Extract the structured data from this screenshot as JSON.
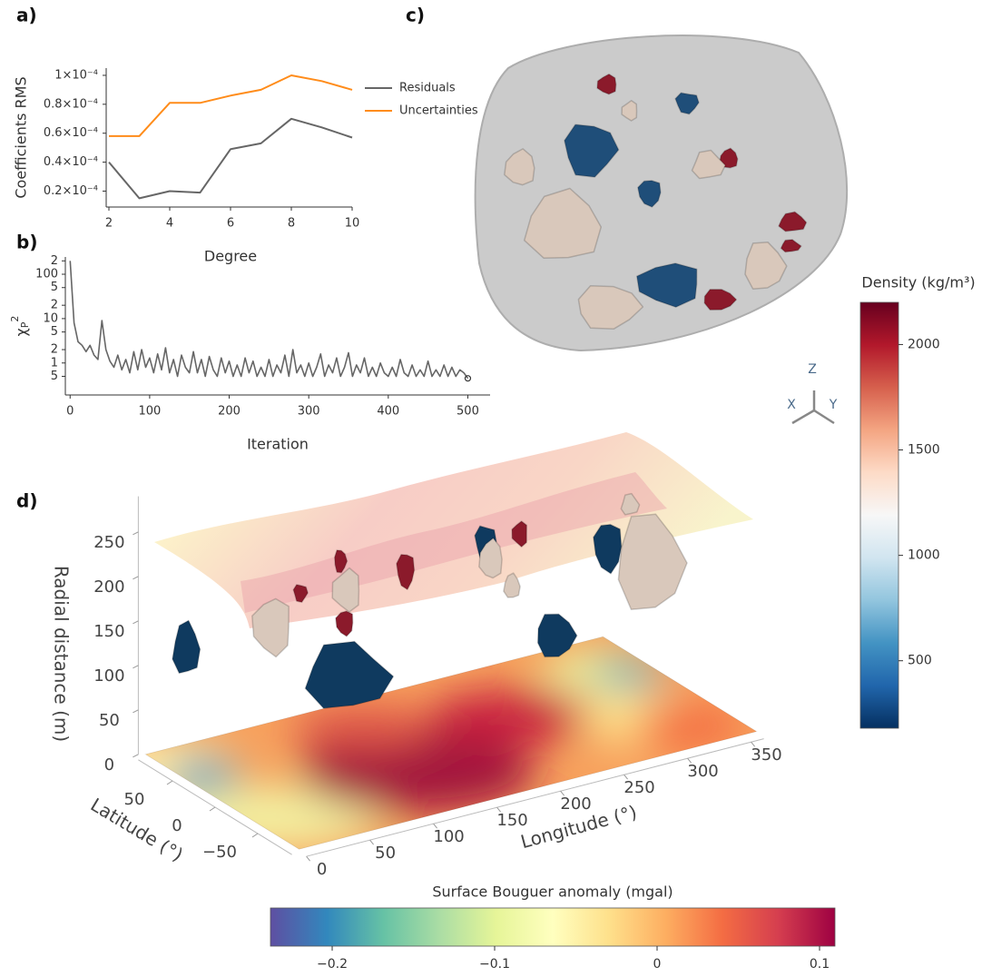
{
  "chart_data": [
    {
      "type": "line",
      "label": "a)",
      "xlabel": "Degree",
      "ylabel": "Coefficients RMS",
      "x": [
        2,
        3,
        4,
        5,
        6,
        7,
        8,
        9,
        10
      ],
      "series": [
        {
          "name": "Residuals",
          "color": "#666666",
          "values": [
            4e-05,
            1.5e-05,
            2e-05,
            1.9e-05,
            4.9e-05,
            5.3e-05,
            7e-05,
            6.4e-05,
            5.7e-05
          ]
        },
        {
          "name": "Uncertainties",
          "color": "#ff8c1a",
          "values": [
            5.8e-05,
            5.8e-05,
            8.1e-05,
            8.1e-05,
            8.6e-05,
            9e-05,
            0.0001,
            9.6e-05,
            9e-05
          ]
        }
      ],
      "xlim": [
        2,
        10
      ],
      "ylim": [
        9e-06,
        0.000105
      ],
      "xticks": [
        2,
        4,
        6,
        8,
        10
      ],
      "yticks": [
        {
          "value": 2e-05,
          "label": "0.2×10⁻⁴"
        },
        {
          "value": 4e-05,
          "label": "0.4×10⁻⁴"
        },
        {
          "value": 6e-05,
          "label": "0.6×10⁻⁴"
        },
        {
          "value": 8e-05,
          "label": "0.8×10⁻⁴"
        },
        {
          "value": 0.0001,
          "label": "1×10⁻⁴"
        }
      ],
      "legend": "right"
    },
    {
      "type": "line",
      "label": "b)",
      "xlabel": "Iteration",
      "ylabel": {
        "base": "χ",
        "sub": "P",
        "sup": "2"
      },
      "log_y": true,
      "x": [
        0,
        5,
        10,
        15,
        20,
        25,
        30,
        35,
        40,
        45,
        50,
        55,
        60,
        65,
        70,
        75,
        80,
        85,
        90,
        95,
        100,
        105,
        110,
        115,
        120,
        125,
        130,
        135,
        140,
        145,
        150,
        155,
        160,
        165,
        170,
        175,
        180,
        185,
        190,
        195,
        200,
        205,
        210,
        215,
        220,
        225,
        230,
        235,
        240,
        245,
        250,
        255,
        260,
        265,
        270,
        275,
        280,
        285,
        290,
        295,
        300,
        305,
        310,
        315,
        320,
        325,
        330,
        335,
        340,
        345,
        350,
        355,
        360,
        365,
        370,
        375,
        380,
        385,
        390,
        395,
        400,
        405,
        410,
        415,
        420,
        425,
        430,
        435,
        440,
        445,
        450,
        455,
        460,
        465,
        470,
        475,
        480,
        485,
        490,
        495,
        500
      ],
      "series": [
        {
          "color": "#666666",
          "values": [
            200,
            8,
            3,
            2.5,
            1.8,
            2.5,
            1.5,
            1.2,
            9,
            2,
            1.1,
            0.8,
            1.5,
            0.7,
            1.2,
            0.6,
            1.8,
            0.7,
            2,
            0.8,
            1.3,
            0.6,
            1.6,
            0.7,
            2.2,
            0.6,
            1.2,
            0.5,
            1.5,
            0.8,
            0.6,
            1.8,
            0.6,
            1.2,
            0.5,
            1.4,
            0.7,
            0.5,
            1.3,
            0.6,
            1.1,
            0.5,
            0.9,
            0.5,
            1.3,
            0.6,
            1.1,
            0.5,
            0.8,
            0.5,
            1.2,
            0.5,
            0.9,
            0.6,
            1.5,
            0.5,
            2,
            0.6,
            0.9,
            0.5,
            1,
            0.5,
            0.8,
            1.6,
            0.5,
            0.9,
            0.6,
            1.3,
            0.5,
            0.8,
            1.7,
            0.5,
            0.9,
            0.6,
            1.3,
            0.5,
            0.8,
            0.5,
            1,
            0.6,
            0.5,
            0.8,
            0.5,
            1.2,
            0.6,
            0.5,
            0.9,
            0.5,
            0.7,
            0.5,
            1.1,
            0.5,
            0.7,
            0.5,
            0.9,
            0.5,
            0.8,
            0.5,
            0.7,
            0.6,
            0.45
          ]
        }
      ],
      "xlim": [
        -6,
        528
      ],
      "ylim": [
        0.19,
        245
      ],
      "xticks": [
        0,
        100,
        200,
        300,
        400,
        500
      ],
      "yticks": [
        {
          "value": 200,
          "label": "2"
        },
        100,
        {
          "value": 50,
          "label": "5"
        },
        {
          "value": 20,
          "label": "2"
        },
        10,
        5,
        2,
        1,
        {
          "value": 0.5,
          "label": "5"
        }
      ],
      "end_marker": true
    },
    {
      "type": "colorbar",
      "label": "c)",
      "title": "Density (kg/m³)",
      "axes_triad": [
        "Z",
        "X",
        "Y"
      ],
      "orientation": "vertical",
      "colors": [
        "#053061",
        "#2166ac",
        "#4393c3",
        "#92c5de",
        "#d1e5f0",
        "#f7f7f7",
        "#fddbc7",
        "#f4a582",
        "#d6604d",
        "#b2182b",
        "#67001f"
      ],
      "ylim": [
        180,
        2200
      ],
      "yticks": [
        500,
        1000,
        1500,
        2000
      ]
    },
    {
      "type": "surface3d",
      "label": "d)",
      "xlabel": "Longitude (°)",
      "ylabel": "Latitude (°)",
      "zlabel": "Radial distance (m)",
      "xlim": [
        0,
        360
      ],
      "ylim": [
        -90,
        90
      ],
      "zlim": [
        0,
        290
      ],
      "xticks": [
        0,
        50,
        100,
        150,
        200,
        250,
        300,
        350
      ],
      "yticks": [
        {
          "value": -50,
          "label": "−50"
        },
        0,
        50
      ],
      "zticks": [
        0,
        50,
        100,
        150,
        200,
        250
      ]
    },
    {
      "type": "colorbar",
      "title": "Surface Bouguer anomaly (mgal)",
      "orientation": "horizontal",
      "colors": [
        "#5e4fa2",
        "#3288bd",
        "#66c2a5",
        "#abdda4",
        "#e6f598",
        "#ffffbf",
        "#fee08b",
        "#fdae61",
        "#f46d43",
        "#d53e4f",
        "#9e0142"
      ],
      "xlim": [
        -0.238,
        0.1095
      ],
      "xticks": [
        {
          "value": -0.2,
          "label": "−0.2"
        },
        {
          "value": -0.1,
          "label": "−0.1"
        },
        0,
        0.1
      ]
    }
  ]
}
